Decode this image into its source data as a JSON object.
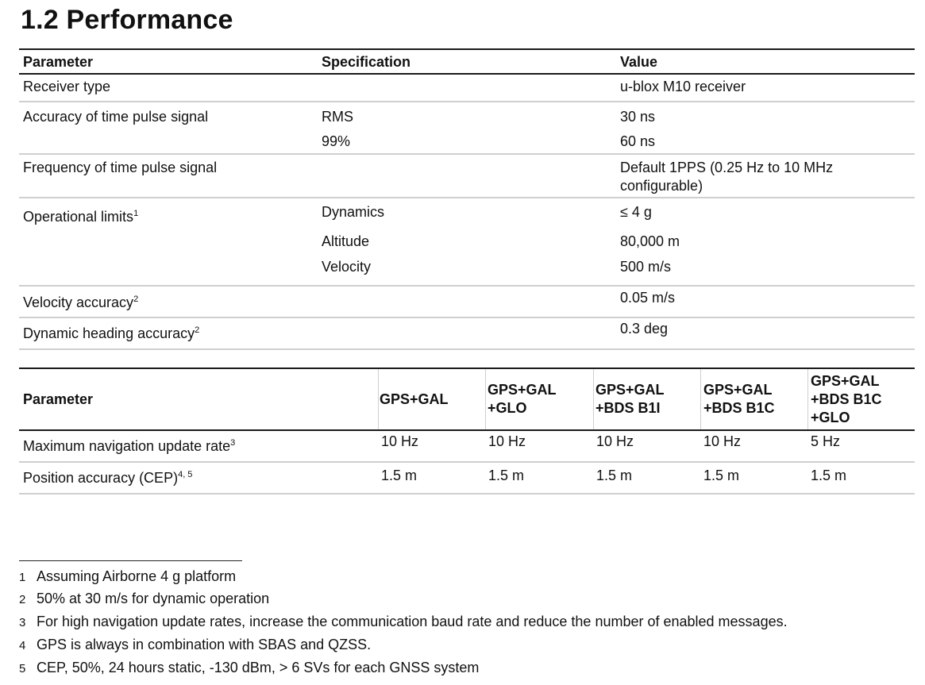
{
  "title": "1.2 Performance",
  "table1": {
    "headers": [
      "Parameter",
      "Specification",
      "Value"
    ],
    "rows": [
      {
        "param": "Receiver type",
        "spec": "",
        "value": "u-blox M10 receiver"
      },
      {
        "param": "Accuracy of time pulse signal",
        "sub": [
          {
            "spec": "RMS",
            "value": "30 ns"
          },
          {
            "spec": "99%",
            "value": "60 ns"
          }
        ]
      },
      {
        "param": "Frequency of time pulse signal",
        "spec": "",
        "value_line1": "Default 1PPS (0.25 Hz to 10 MHz",
        "value_line2": "configurable)"
      },
      {
        "param": "Operational limits",
        "sup": "1",
        "sub": [
          {
            "spec": "Dynamics",
            "value": "≤ 4 g"
          },
          {
            "spec": "Altitude",
            "value": "80,000 m"
          },
          {
            "spec": "Velocity",
            "value": "500 m/s"
          }
        ]
      },
      {
        "param": "Velocity accuracy",
        "sup": "2",
        "value": "0.05 m/s"
      },
      {
        "param": "Dynamic heading accuracy",
        "sup": "2",
        "value": "0.3 deg"
      }
    ]
  },
  "table2": {
    "headers": {
      "param": "Parameter",
      "c1": "GPS+GAL",
      "c2": [
        "GPS+GAL",
        "+GLO"
      ],
      "c3": [
        "GPS+GAL",
        "+BDS B1I"
      ],
      "c4": [
        "GPS+GAL",
        "+BDS B1C"
      ],
      "c5": [
        "GPS+GAL",
        "+BDS B1C",
        "+GLO"
      ]
    },
    "rows": [
      {
        "param": "Maximum navigation update rate",
        "sup": "3",
        "values": [
          "10 Hz",
          "10 Hz",
          "10 Hz",
          "10 Hz",
          "5 Hz"
        ]
      },
      {
        "param": "Position accuracy (CEP)",
        "sup": "4, 5",
        "values": [
          "1.5 m",
          "1.5 m",
          "1.5 m",
          "1.5 m",
          "1.5 m"
        ]
      }
    ]
  },
  "footnotes": [
    {
      "num": "1",
      "text": "Assuming Airborne 4 g platform"
    },
    {
      "num": "2",
      "text": "50% at 30 m/s for dynamic operation"
    },
    {
      "num": "3",
      "text": "For high navigation update rates, increase the communication baud rate and reduce the number of enabled messages."
    },
    {
      "num": "4",
      "text": "GPS is always in combination with SBAS and QZSS."
    },
    {
      "num": "5",
      "text": "CEP, 50%, 24 hours static, -130 dBm, > 6 SVs for each GNSS system"
    }
  ]
}
